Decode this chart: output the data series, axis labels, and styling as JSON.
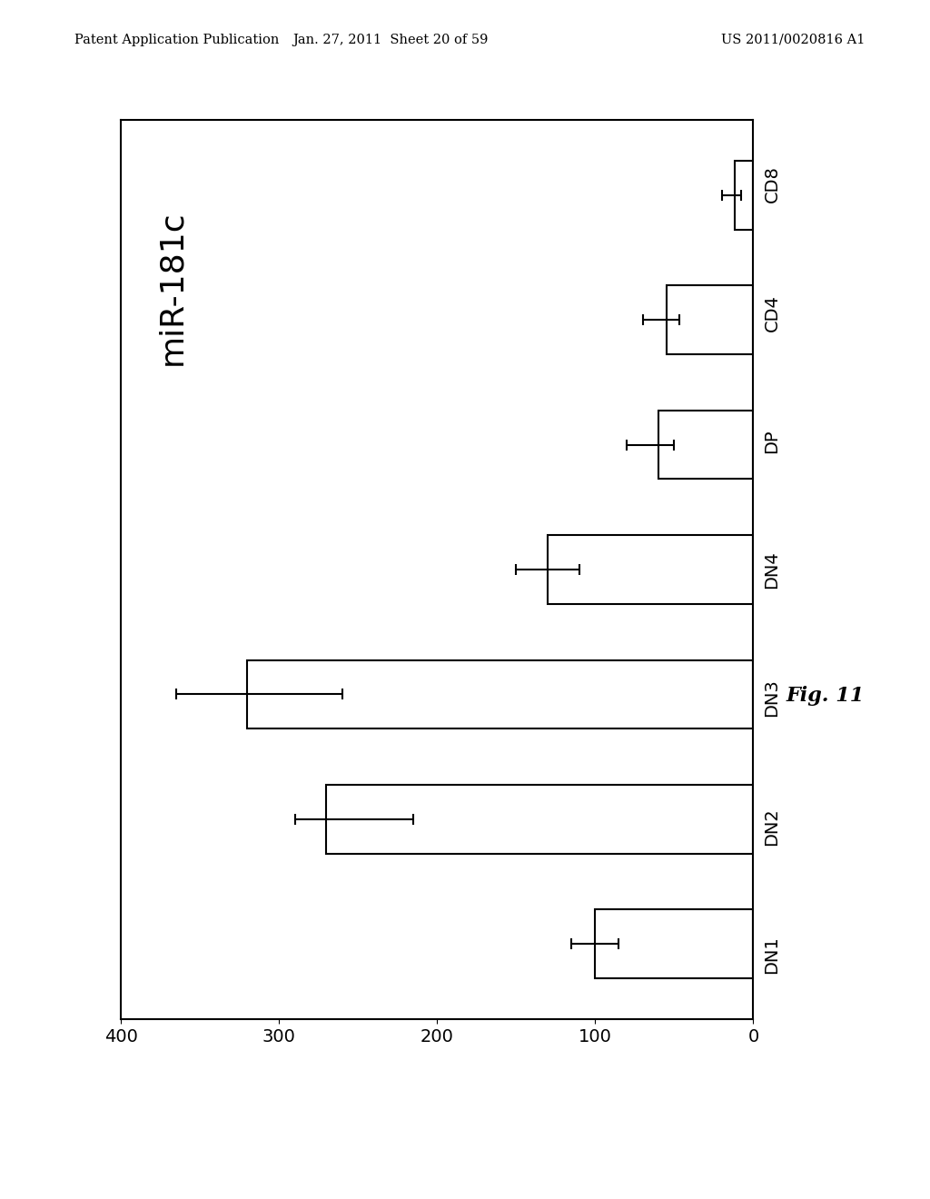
{
  "categories": [
    "DN1",
    "DN2",
    "DN3",
    "DN4",
    "DP",
    "CD4",
    "CD8"
  ],
  "values": [
    100,
    270,
    320,
    130,
    60,
    55,
    12
  ],
  "errors_minus": [
    15,
    55,
    60,
    20,
    10,
    8,
    4
  ],
  "errors_plus": [
    15,
    20,
    45,
    20,
    20,
    15,
    8
  ],
  "title": "miR-181c",
  "xlim_left": 400,
  "xlim_right": 0,
  "xticks": [
    400,
    300,
    200,
    100,
    0
  ],
  "xtick_labels": [
    "400",
    "300",
    "200",
    "100",
    "0"
  ],
  "bar_color": "#ffffff",
  "bar_edgecolor": "#000000",
  "background_color": "#ffffff",
  "fig_caption": "Fig. 11",
  "header_left": "Patent Application Publication",
  "header_center": "Jan. 27, 2011  Sheet 20 of 59",
  "header_right": "US 2011/0020816 A1",
  "bar_height": 0.55
}
